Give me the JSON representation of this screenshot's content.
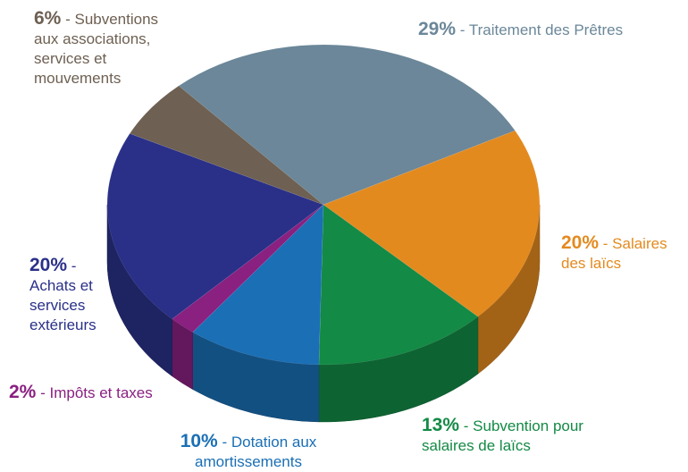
{
  "chart_data": {
    "type": "pie3d",
    "categories": [
      "- Traitement des Prêtres",
      "- Salaires des laïcs",
      "- Subvention pour salaires de laïcs",
      "- Dotation aux amortissements",
      "- Impôts et taxes",
      "- Achats et services extérieurs",
      "- Subventions aux associations, services et mouvements"
    ],
    "values": [
      29,
      20,
      13,
      10,
      2,
      20,
      6
    ],
    "value_labels": [
      "29%",
      "20%",
      "13%",
      "10%",
      "2%",
      "20%",
      "6%"
    ],
    "colors": [
      "#6b8799",
      "#e38a1f",
      "#138a45",
      "#1a6fb5",
      "#8a2080",
      "#2a3088",
      "#6e6052"
    ]
  }
}
